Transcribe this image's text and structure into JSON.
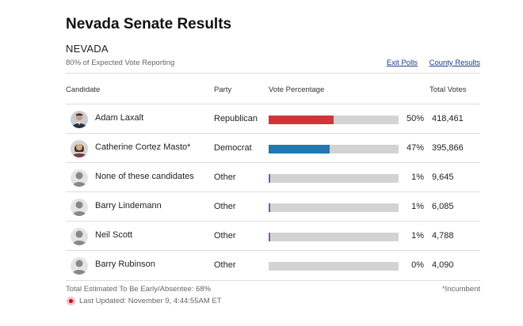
{
  "header": {
    "title": "Nevada Senate Results",
    "state": "NEVADA",
    "reporting": "80% of Expected Vote Reporting",
    "links": [
      "Exit Polls",
      "County Results"
    ]
  },
  "table": {
    "columns": [
      "Candidate",
      "Party",
      "Vote Percentage",
      "Total Votes"
    ],
    "rows": [
      {
        "name": "Adam Laxalt",
        "party": "Republican",
        "pct": "50%",
        "pct_value": 50,
        "votes": "418,461",
        "color": "#d0353a",
        "photo": "laxalt-photo"
      },
      {
        "name": "Catherine Cortez Masto*",
        "party": "Democrat",
        "pct": "47%",
        "pct_value": 47,
        "votes": "395,866",
        "color": "#2178ae",
        "photo": "cortez-masto-photo"
      },
      {
        "name": "None of these candidates",
        "party": "Other",
        "pct": "1%",
        "pct_value": 1,
        "votes": "9,645",
        "color": "#8b4fb4",
        "photo": "person-silhouette-icon"
      },
      {
        "name": "Barry Lindemann",
        "party": "Other",
        "pct": "1%",
        "pct_value": 1,
        "votes": "6,085",
        "color": "#8b4fb4",
        "photo": "person-silhouette-icon"
      },
      {
        "name": "Neil Scott",
        "party": "Other",
        "pct": "1%",
        "pct_value": 1,
        "votes": "4,788",
        "color": "#8b4fb4",
        "photo": "person-silhouette-icon"
      },
      {
        "name": "Barry Rubinson",
        "party": "Other",
        "pct": "0%",
        "pct_value": 0,
        "votes": "4,090",
        "color": "#8b4fb4",
        "photo": "person-silhouette-icon"
      }
    ]
  },
  "footer": {
    "early": "Total Estimated To Be Early/Absentee: 68%",
    "incumbent": "*Incumbent",
    "updated": "Last Updated: November 9, 4:44:55AM ET"
  }
}
